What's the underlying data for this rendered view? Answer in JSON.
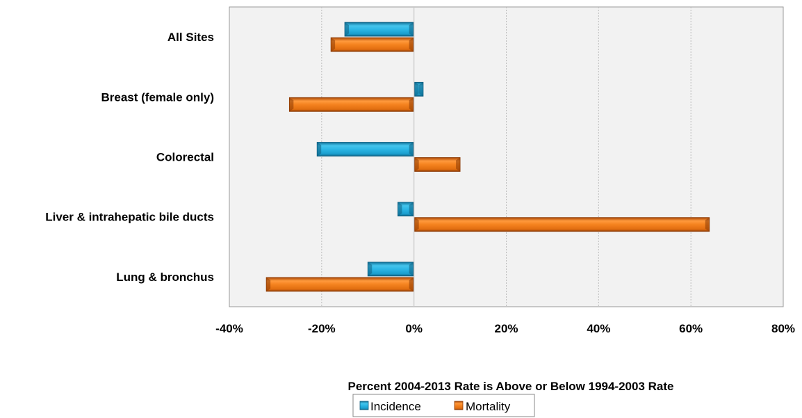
{
  "chart_data": {
    "type": "bar",
    "orientation": "horizontal",
    "categories": [
      "All Sites",
      "Breast (female only)",
      "Colorectal",
      "Liver & intrahepatic bile ducts",
      "Lung & bronchus"
    ],
    "series": [
      {
        "name": "Incidence",
        "values": [
          -15,
          2,
          -21,
          -3.5,
          -10
        ],
        "color": "#1fa8d8"
      },
      {
        "name": "Mortality",
        "values": [
          -18,
          -27,
          10,
          64,
          -32
        ],
        "color": "#f07a1a"
      }
    ],
    "xlim": [
      -40,
      80
    ],
    "xticks": [
      -40,
      -20,
      0,
      20,
      40,
      60,
      80
    ],
    "tick_labels": [
      "-40%",
      "-20%",
      "0%",
      "20%",
      "40%",
      "60%",
      "80%"
    ],
    "xlabel": "Percent 2004-2013 Rate is Above or Below 1994-2003 Rate",
    "grid": "vertical-dotted",
    "legend_position": "bottom"
  }
}
